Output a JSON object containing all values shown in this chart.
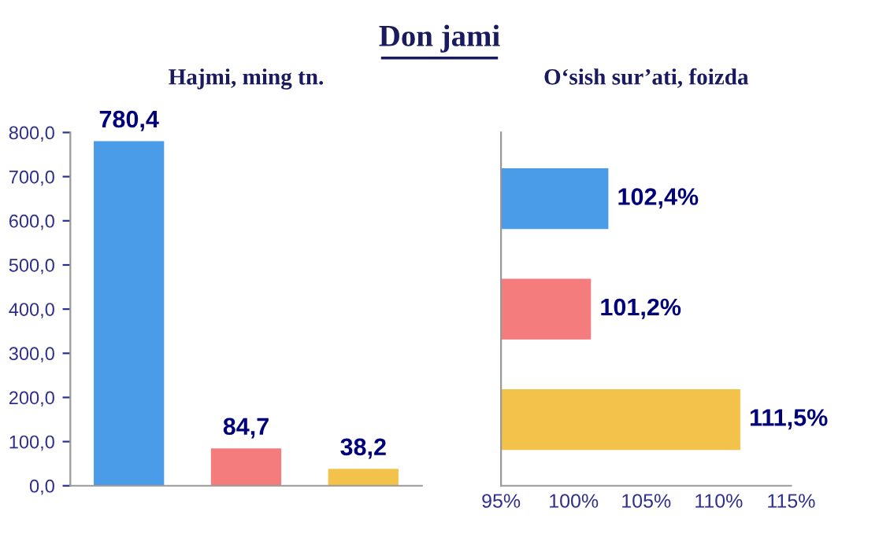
{
  "chart_data": [
    {
      "type": "bar",
      "title": "Hajmi, ming tn.",
      "annotations": [
        "Don jami"
      ],
      "categories": [
        null,
        null,
        null
      ],
      "values": [
        780.4,
        84.7,
        38.2
      ],
      "colors": [
        "#4a9be8",
        "#f47c7c",
        "#f2c24a"
      ],
      "value_labels": [
        "780,4",
        "84,7",
        "38,2"
      ],
      "ylim": [
        0,
        800
      ],
      "yticks": [
        {
          "value": 0,
          "label": "0,0"
        },
        {
          "value": 100,
          "label": "100,0"
        },
        {
          "value": 200,
          "label": "200,0"
        },
        {
          "value": 300,
          "label": "300,0"
        },
        {
          "value": 400,
          "label": "400,0"
        },
        {
          "value": 500,
          "label": "500,0"
        },
        {
          "value": 600,
          "label": "600,0"
        },
        {
          "value": 700,
          "label": "700,0"
        },
        {
          "value": 800,
          "label": "800,0"
        }
      ]
    },
    {
      "type": "bar",
      "orientation": "horizontal",
      "title": "O‘sish sur’ati, foizda",
      "categories": [
        null,
        null,
        null
      ],
      "values": [
        102.4,
        101.2,
        111.5
      ],
      "colors": [
        "#4a9be8",
        "#f47c7c",
        "#f2c24a"
      ],
      "value_labels": [
        "102,4%",
        "101,2%",
        "111,5%"
      ],
      "xlim": [
        95,
        115
      ],
      "xticks": [
        {
          "value": 95,
          "label": "95%"
        },
        {
          "value": 100,
          "label": "100%"
        },
        {
          "value": 105,
          "label": "105%"
        },
        {
          "value": 110,
          "label": "110%"
        },
        {
          "value": 115,
          "label": "115%"
        }
      ]
    }
  ]
}
